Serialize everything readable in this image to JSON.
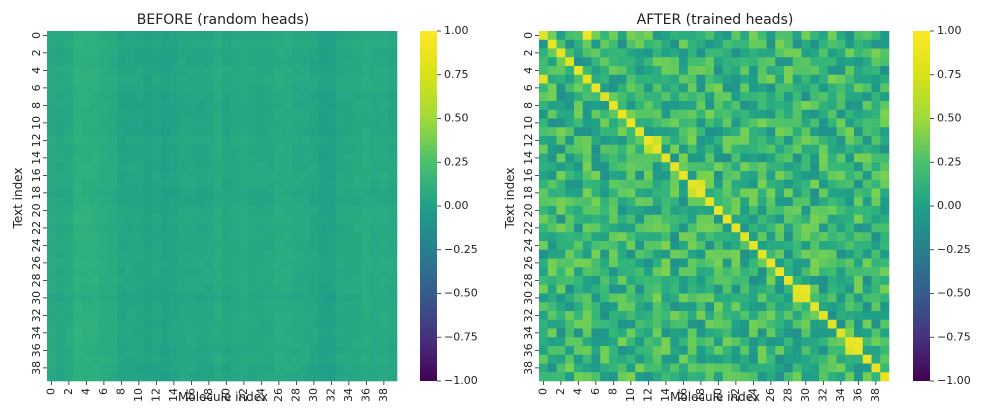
{
  "chart_data": [
    {
      "type": "heatmap",
      "title": "BEFORE (random heads)",
      "xlabel": "Molecule index",
      "ylabel": "Text index",
      "rows": 40,
      "cols": 40,
      "x_ticks": [
        0,
        2,
        4,
        6,
        8,
        10,
        12,
        14,
        16,
        18,
        20,
        22,
        24,
        26,
        28,
        30,
        32,
        34,
        36,
        38
      ],
      "y_ticks": [
        0,
        2,
        4,
        6,
        8,
        10,
        12,
        14,
        16,
        18,
        20,
        22,
        24,
        26,
        28,
        30,
        32,
        34,
        36,
        38
      ],
      "value_range": [
        -1.0,
        1.0
      ],
      "colormap": "viridis",
      "colorbar_ticks": [
        "1.00",
        "0.75",
        "0.50",
        "0.25",
        "0.00",
        "−0.25",
        "−0.50",
        "−0.75",
        "−1.00"
      ],
      "description_values": {
        "base_level": 0.2,
        "column_offsets_high": [
          3,
          4,
          5,
          6
        ],
        "column_offsets_low": [
          8,
          9,
          10,
          11,
          12,
          13,
          14,
          17,
          18,
          30,
          31,
          32
        ]
      }
    },
    {
      "type": "heatmap",
      "title": "AFTER (trained heads)",
      "xlabel": "Molecule index",
      "ylabel": "Text index",
      "rows": 40,
      "cols": 40,
      "x_ticks": [
        0,
        2,
        4,
        6,
        8,
        10,
        12,
        14,
        16,
        18,
        20,
        22,
        24,
        26,
        28,
        30,
        32,
        34,
        36,
        38
      ],
      "y_ticks": [
        0,
        2,
        4,
        6,
        8,
        10,
        12,
        14,
        16,
        18,
        20,
        22,
        24,
        26,
        28,
        30,
        32,
        34,
        36,
        38
      ],
      "value_range": [
        -1.0,
        1.0
      ],
      "colormap": "viridis",
      "colorbar_ticks": [
        "1.00",
        "0.75",
        "0.50",
        "0.25",
        "0.00",
        "−0.25",
        "−0.50",
        "−0.75",
        "−1.00"
      ],
      "diagonal_value": 0.95,
      "off_diagonal_range": [
        0.0,
        0.6
      ],
      "extra_bright_cells": [
        [
          0,
          5,
          0.95
        ],
        [
          5,
          0,
          0.9
        ],
        [
          29,
          30,
          0.95
        ],
        [
          30,
          29,
          0.9
        ],
        [
          35,
          36,
          0.95
        ],
        [
          36,
          35,
          0.9
        ],
        [
          17,
          18,
          0.9
        ],
        [
          18,
          17,
          0.85
        ],
        [
          12,
          13,
          0.85
        ],
        [
          13,
          12,
          0.8
        ]
      ]
    }
  ]
}
